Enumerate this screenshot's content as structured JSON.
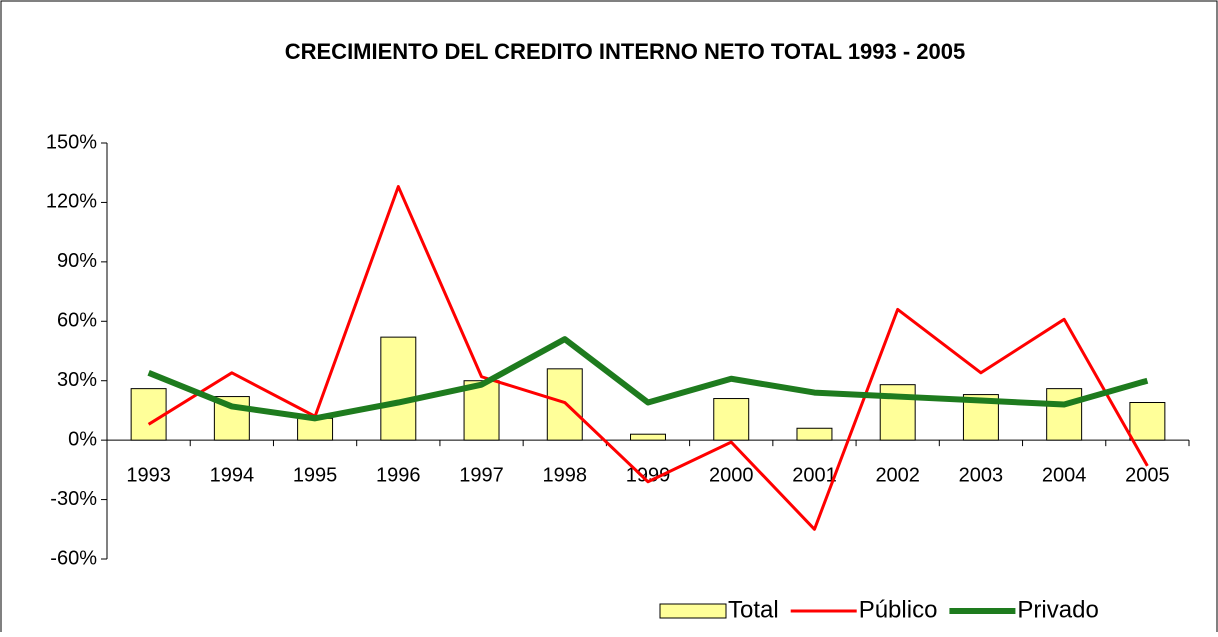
{
  "chart_data": {
    "type": "combo",
    "title": "CRECIMIENTO DEL CREDITO INTERNO NETO TOTAL 1993 - 2005",
    "categories": [
      "1993",
      "1994",
      "1995",
      "1996",
      "1997",
      "1998",
      "1999",
      "2000",
      "2001",
      "2002",
      "2003",
      "2004",
      "2005"
    ],
    "series": [
      {
        "name": "Total",
        "type": "bar",
        "color": "#ffff99",
        "values": [
          26,
          22,
          11,
          52,
          30,
          36,
          3,
          21,
          6,
          28,
          23,
          26,
          19
        ]
      },
      {
        "name": "Público",
        "type": "line",
        "color": "#ff0000",
        "values": [
          8,
          34,
          12,
          128,
          32,
          19,
          -21,
          -1,
          -45,
          66,
          34,
          61,
          -13
        ]
      },
      {
        "name": "Privado",
        "type": "line",
        "color": "#1e7b1e",
        "values": [
          34,
          17,
          11,
          19,
          28,
          51,
          19,
          31,
          24,
          22,
          20,
          18,
          30
        ]
      }
    ],
    "ylim": [
      -60,
      150
    ],
    "yticks": [
      {
        "value": -60,
        "label": "-60%"
      },
      {
        "value": -30,
        "label": "-30%"
      },
      {
        "value": 0,
        "label": "0%"
      },
      {
        "value": 30,
        "label": "30%"
      },
      {
        "value": 60,
        "label": "60%"
      },
      {
        "value": 90,
        "label": "90%"
      },
      {
        "value": 120,
        "label": "120%"
      },
      {
        "value": 150,
        "label": "150%"
      }
    ],
    "legend": "bottom-right"
  }
}
